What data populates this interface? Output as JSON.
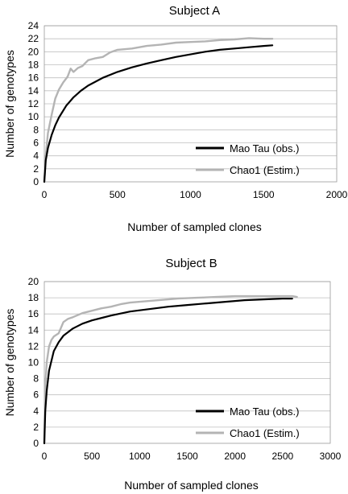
{
  "chart_data": [
    {
      "type": "line",
      "title": "Subject A",
      "xlabel": "Number of sampled clones",
      "ylabel": "Number of genotypes",
      "xlim": [
        0,
        2000
      ],
      "ylim": [
        0,
        24
      ],
      "xticks": [
        0,
        500,
        1000,
        1500,
        2000
      ],
      "yticks": [
        0,
        2,
        4,
        6,
        8,
        10,
        12,
        14,
        16,
        18,
        20,
        22,
        24
      ],
      "grid": "horizontal",
      "legend_position": "bottom-right",
      "series": [
        {
          "name": "Mao Tau (obs.)",
          "color": "#000000",
          "x": [
            0,
            10,
            25,
            50,
            75,
            100,
            150,
            200,
            250,
            300,
            400,
            500,
            600,
            700,
            800,
            900,
            1000,
            1100,
            1200,
            1300,
            1400,
            1500,
            1560
          ],
          "y": [
            0,
            3.3,
            5.2,
            7.2,
            8.7,
            9.9,
            11.7,
            13.0,
            14.0,
            14.8,
            16.0,
            16.9,
            17.6,
            18.2,
            18.7,
            19.2,
            19.6,
            20.0,
            20.3,
            20.5,
            20.7,
            20.9,
            21.0
          ]
        },
        {
          "name": "Chao1 (Estim.)",
          "color": "#b4b4b4",
          "x": [
            0,
            10,
            25,
            50,
            75,
            100,
            130,
            160,
            180,
            200,
            230,
            260,
            300,
            350,
            400,
            450,
            500,
            600,
            700,
            800,
            900,
            1000,
            1100,
            1200,
            1300,
            1400,
            1500,
            1560
          ],
          "y": [
            0,
            4.0,
            7.5,
            10.3,
            12.8,
            14.2,
            15.3,
            16.2,
            17.4,
            16.9,
            17.5,
            17.8,
            18.7,
            19.0,
            19.2,
            19.9,
            20.3,
            20.5,
            20.9,
            21.1,
            21.4,
            21.5,
            21.6,
            21.8,
            21.9,
            22.1,
            22.0,
            22.0
          ]
        }
      ]
    },
    {
      "type": "line",
      "title": "Subject B",
      "xlabel": "Number of sampled clones",
      "ylabel": "Number of genotypes",
      "xlim": [
        0,
        3000
      ],
      "ylim": [
        0,
        20
      ],
      "xticks": [
        0,
        500,
        1000,
        1500,
        2000,
        2500,
        3000
      ],
      "yticks": [
        0,
        2,
        4,
        6,
        8,
        10,
        12,
        14,
        16,
        18,
        20
      ],
      "grid": "horizontal",
      "legend_position": "bottom-right",
      "series": [
        {
          "name": "Mao Tau (obs.)",
          "color": "#000000",
          "x": [
            0,
            10,
            25,
            50,
            100,
            150,
            200,
            300,
            400,
            500,
            700,
            900,
            1100,
            1300,
            1500,
            1700,
            1900,
            2100,
            2300,
            2500,
            2600
          ],
          "y": [
            0,
            4.0,
            6.5,
            9.0,
            11.4,
            12.5,
            13.3,
            14.2,
            14.8,
            15.2,
            15.8,
            16.3,
            16.6,
            16.9,
            17.1,
            17.3,
            17.5,
            17.7,
            17.8,
            17.9,
            17.9
          ]
        },
        {
          "name": "Chao1 (Estim.)",
          "color": "#b4b4b4",
          "x": [
            0,
            10,
            25,
            50,
            75,
            100,
            150,
            200,
            250,
            300,
            400,
            500,
            600,
            700,
            800,
            900,
            1000,
            1200,
            1400,
            1600,
            1800,
            2000,
            2200,
            2400,
            2600,
            2650
          ],
          "y": [
            0,
            7.0,
            10.0,
            12.0,
            12.8,
            13.2,
            13.6,
            15.0,
            15.4,
            15.6,
            16.1,
            16.4,
            16.7,
            16.9,
            17.2,
            17.4,
            17.5,
            17.7,
            17.9,
            18.0,
            18.1,
            18.2,
            18.2,
            18.2,
            18.2,
            18.1
          ]
        }
      ]
    }
  ]
}
